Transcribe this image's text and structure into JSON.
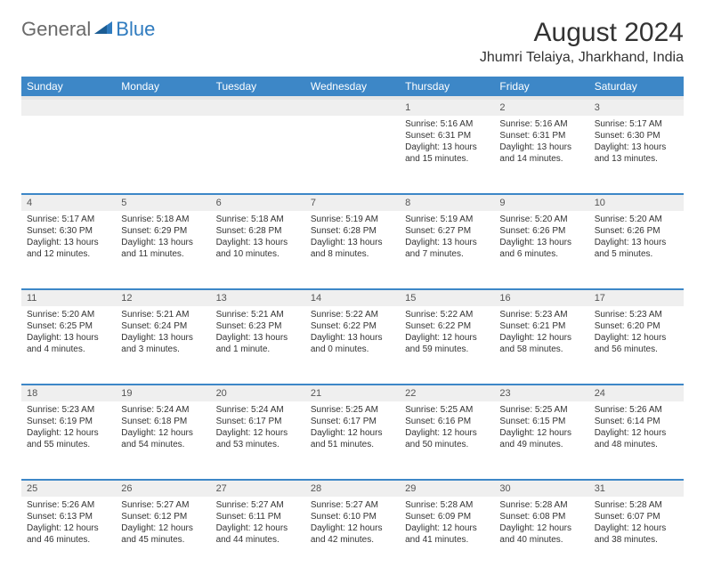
{
  "logo": {
    "general": "General",
    "blue": "Blue"
  },
  "title": "August 2024",
  "location": "Jhumri Telaiya, Jharkhand, India",
  "header_bg": "#3d87c7",
  "divider_color": "#3d87c7",
  "daynum_bg": "#efefef",
  "text_color": "#333333",
  "font_family": "Arial",
  "title_fontsize": 30,
  "location_fontsize": 16,
  "header_fontsize": 12,
  "cell_fontsize": 10,
  "days": [
    "Sunday",
    "Monday",
    "Tuesday",
    "Wednesday",
    "Thursday",
    "Friday",
    "Saturday"
  ],
  "weeks": [
    [
      null,
      null,
      null,
      null,
      {
        "n": "1",
        "sr": "5:16 AM",
        "ss": "6:31 PM",
        "d1": "13 hours",
        "d2": "and 15 minutes."
      },
      {
        "n": "2",
        "sr": "5:16 AM",
        "ss": "6:31 PM",
        "d1": "13 hours",
        "d2": "and 14 minutes."
      },
      {
        "n": "3",
        "sr": "5:17 AM",
        "ss": "6:30 PM",
        "d1": "13 hours",
        "d2": "and 13 minutes."
      }
    ],
    [
      {
        "n": "4",
        "sr": "5:17 AM",
        "ss": "6:30 PM",
        "d1": "13 hours",
        "d2": "and 12 minutes."
      },
      {
        "n": "5",
        "sr": "5:18 AM",
        "ss": "6:29 PM",
        "d1": "13 hours",
        "d2": "and 11 minutes."
      },
      {
        "n": "6",
        "sr": "5:18 AM",
        "ss": "6:28 PM",
        "d1": "13 hours",
        "d2": "and 10 minutes."
      },
      {
        "n": "7",
        "sr": "5:19 AM",
        "ss": "6:28 PM",
        "d1": "13 hours",
        "d2": "and 8 minutes."
      },
      {
        "n": "8",
        "sr": "5:19 AM",
        "ss": "6:27 PM",
        "d1": "13 hours",
        "d2": "and 7 minutes."
      },
      {
        "n": "9",
        "sr": "5:20 AM",
        "ss": "6:26 PM",
        "d1": "13 hours",
        "d2": "and 6 minutes."
      },
      {
        "n": "10",
        "sr": "5:20 AM",
        "ss": "6:26 PM",
        "d1": "13 hours",
        "d2": "and 5 minutes."
      }
    ],
    [
      {
        "n": "11",
        "sr": "5:20 AM",
        "ss": "6:25 PM",
        "d1": "13 hours",
        "d2": "and 4 minutes."
      },
      {
        "n": "12",
        "sr": "5:21 AM",
        "ss": "6:24 PM",
        "d1": "13 hours",
        "d2": "and 3 minutes."
      },
      {
        "n": "13",
        "sr": "5:21 AM",
        "ss": "6:23 PM",
        "d1": "13 hours",
        "d2": "and 1 minute."
      },
      {
        "n": "14",
        "sr": "5:22 AM",
        "ss": "6:22 PM",
        "d1": "13 hours",
        "d2": "and 0 minutes."
      },
      {
        "n": "15",
        "sr": "5:22 AM",
        "ss": "6:22 PM",
        "d1": "12 hours",
        "d2": "and 59 minutes."
      },
      {
        "n": "16",
        "sr": "5:23 AM",
        "ss": "6:21 PM",
        "d1": "12 hours",
        "d2": "and 58 minutes."
      },
      {
        "n": "17",
        "sr": "5:23 AM",
        "ss": "6:20 PM",
        "d1": "12 hours",
        "d2": "and 56 minutes."
      }
    ],
    [
      {
        "n": "18",
        "sr": "5:23 AM",
        "ss": "6:19 PM",
        "d1": "12 hours",
        "d2": "and 55 minutes."
      },
      {
        "n": "19",
        "sr": "5:24 AM",
        "ss": "6:18 PM",
        "d1": "12 hours",
        "d2": "and 54 minutes."
      },
      {
        "n": "20",
        "sr": "5:24 AM",
        "ss": "6:17 PM",
        "d1": "12 hours",
        "d2": "and 53 minutes."
      },
      {
        "n": "21",
        "sr": "5:25 AM",
        "ss": "6:17 PM",
        "d1": "12 hours",
        "d2": "and 51 minutes."
      },
      {
        "n": "22",
        "sr": "5:25 AM",
        "ss": "6:16 PM",
        "d1": "12 hours",
        "d2": "and 50 minutes."
      },
      {
        "n": "23",
        "sr": "5:25 AM",
        "ss": "6:15 PM",
        "d1": "12 hours",
        "d2": "and 49 minutes."
      },
      {
        "n": "24",
        "sr": "5:26 AM",
        "ss": "6:14 PM",
        "d1": "12 hours",
        "d2": "and 48 minutes."
      }
    ],
    [
      {
        "n": "25",
        "sr": "5:26 AM",
        "ss": "6:13 PM",
        "d1": "12 hours",
        "d2": "and 46 minutes."
      },
      {
        "n": "26",
        "sr": "5:27 AM",
        "ss": "6:12 PM",
        "d1": "12 hours",
        "d2": "and 45 minutes."
      },
      {
        "n": "27",
        "sr": "5:27 AM",
        "ss": "6:11 PM",
        "d1": "12 hours",
        "d2": "and 44 minutes."
      },
      {
        "n": "28",
        "sr": "5:27 AM",
        "ss": "6:10 PM",
        "d1": "12 hours",
        "d2": "and 42 minutes."
      },
      {
        "n": "29",
        "sr": "5:28 AM",
        "ss": "6:09 PM",
        "d1": "12 hours",
        "d2": "and 41 minutes."
      },
      {
        "n": "30",
        "sr": "5:28 AM",
        "ss": "6:08 PM",
        "d1": "12 hours",
        "d2": "and 40 minutes."
      },
      {
        "n": "31",
        "sr": "5:28 AM",
        "ss": "6:07 PM",
        "d1": "12 hours",
        "d2": "and 38 minutes."
      }
    ]
  ],
  "labels": {
    "sunrise": "Sunrise: ",
    "sunset": "Sunset: ",
    "daylight": "Daylight: "
  }
}
